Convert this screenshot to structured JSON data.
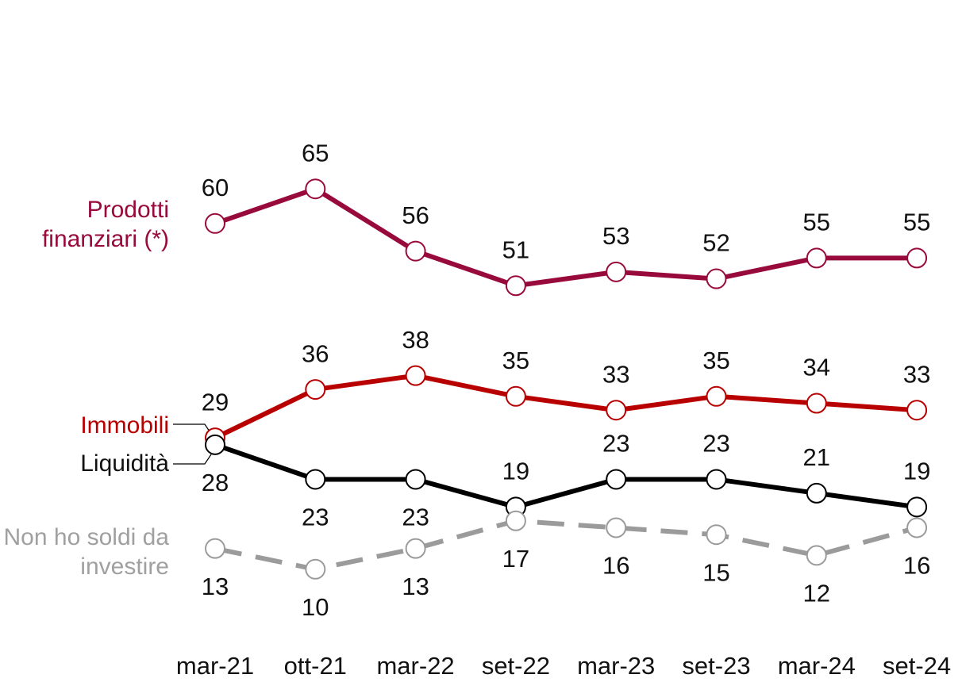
{
  "chart_data": {
    "type": "line",
    "categories": [
      "mar-21",
      "ott-21",
      "mar-22",
      "set-22",
      "mar-23",
      "set-23",
      "mar-24",
      "set-24"
    ],
    "series": [
      {
        "name": "Prodotti finanziari (*)",
        "color": "#990a3c",
        "values": [
          60,
          65,
          56,
          51,
          53,
          52,
          55,
          55
        ]
      },
      {
        "name": "Immobili",
        "color": "#b80000",
        "values": [
          29,
          36,
          38,
          35,
          33,
          35,
          34,
          33
        ]
      },
      {
        "name": "Liquidità",
        "color": "#000000",
        "values": [
          28,
          23,
          23,
          19,
          23,
          23,
          21,
          19
        ]
      },
      {
        "name": "Non ho soldi da investire",
        "color": "#9b9b9b",
        "dashed": true,
        "values": [
          13,
          10,
          13,
          17,
          16,
          15,
          12,
          16
        ]
      }
    ]
  }
}
